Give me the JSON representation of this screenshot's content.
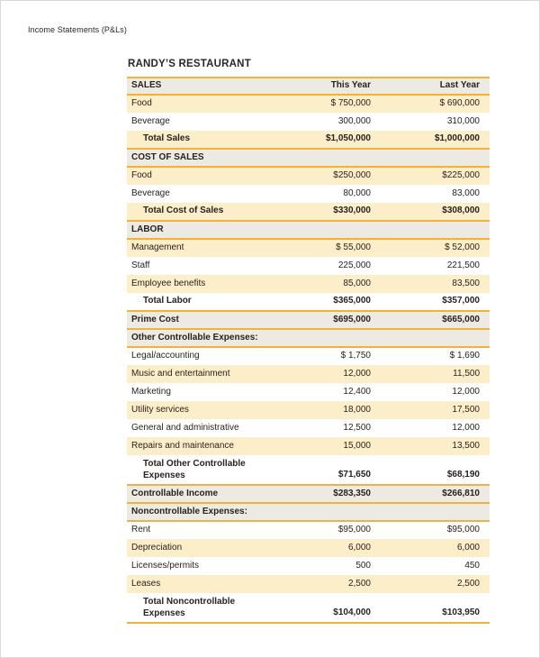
{
  "page": {
    "eyebrow": "Income Statements (P&Ls)",
    "title": "RANDY’S RESTAURANT"
  },
  "colors": {
    "accent_gold": "#efb23d",
    "row_peach": "#fdeeca",
    "band_gray": "#edeae3",
    "text_ink": "#272220"
  },
  "table": {
    "header": {
      "label": "SALES",
      "col_this_year": "This Year",
      "col_last_year": "Last Year"
    },
    "rows": [
      {
        "label": "Food",
        "this_year": "$ 750,000",
        "last_year": "$ 690,000",
        "bg": "peach",
        "bold": false,
        "indent": false
      },
      {
        "label": "Beverage",
        "this_year": "300,000",
        "last_year": "310,000",
        "bg": "white",
        "bold": false,
        "indent": false
      },
      {
        "label": "Total Sales",
        "this_year": "$1,050,000",
        "last_year": "$1,000,000",
        "bg": "peach",
        "bold": true,
        "indent": true
      },
      {
        "label": "COST OF SALES",
        "this_year": "",
        "last_year": "",
        "bg": "band",
        "bold": true,
        "indent": false
      },
      {
        "label": "Food",
        "this_year": "$250,000",
        "last_year": "$225,000",
        "bg": "peach",
        "bold": false,
        "indent": false
      },
      {
        "label": "Beverage",
        "this_year": "80,000",
        "last_year": "83,000",
        "bg": "white",
        "bold": false,
        "indent": false
      },
      {
        "label": "Total Cost of Sales",
        "this_year": "$330,000",
        "last_year": "$308,000",
        "bg": "peach",
        "bold": true,
        "indent": true
      },
      {
        "label": "LABOR",
        "this_year": "",
        "last_year": "",
        "bg": "band",
        "bold": true,
        "indent": false
      },
      {
        "label": "Management",
        "this_year": "$ 55,000",
        "last_year": "$ 52,000",
        "bg": "peach",
        "bold": false,
        "indent": false
      },
      {
        "label": "Staff",
        "this_year": "225,000",
        "last_year": "221,500",
        "bg": "white",
        "bold": false,
        "indent": false
      },
      {
        "label": "Employee benefits",
        "this_year": "85,000",
        "last_year": "83,500",
        "bg": "peach",
        "bold": false,
        "indent": false
      },
      {
        "label": "Total Labor",
        "this_year": "$365,000",
        "last_year": "$357,000",
        "bg": "white",
        "bold": true,
        "indent": true
      },
      {
        "label": "Prime Cost",
        "this_year": "$695,000",
        "last_year": "$665,000",
        "bg": "band",
        "bold": true,
        "indent": false
      },
      {
        "label": "Other Controllable Expenses:",
        "this_year": "",
        "last_year": "",
        "bg": "band",
        "bold": true,
        "indent": false
      },
      {
        "label": "Legal/accounting",
        "this_year": "$ 1,750",
        "last_year": "$ 1,690",
        "bg": "white",
        "bold": false,
        "indent": false
      },
      {
        "label": "Music and entertainment",
        "this_year": "12,000",
        "last_year": "11,500",
        "bg": "peach",
        "bold": false,
        "indent": false
      },
      {
        "label": "Marketing",
        "this_year": "12,400",
        "last_year": "12,000",
        "bg": "white",
        "bold": false,
        "indent": false
      },
      {
        "label": "Utility services",
        "this_year": "18,000",
        "last_year": "17,500",
        "bg": "peach",
        "bold": false,
        "indent": false
      },
      {
        "label": "General and administrative",
        "this_year": "12,500",
        "last_year": "12,000",
        "bg": "white",
        "bold": false,
        "indent": false
      },
      {
        "label": "Repairs and maintenance",
        "this_year": "15,000",
        "last_year": "13,500",
        "bg": "peach",
        "bold": false,
        "indent": false
      },
      {
        "label": "Total Other Controllable",
        "label2": "Expenses",
        "this_year": "$71,650",
        "last_year": "$68,190",
        "bg": "white",
        "bold": true,
        "indent": true
      },
      {
        "label": "Controllable Income",
        "this_year": "$283,350",
        "last_year": "$266,810",
        "bg": "band",
        "bold": true,
        "indent": false
      },
      {
        "label": "Noncontrollable Expenses:",
        "this_year": "",
        "last_year": "",
        "bg": "band",
        "bold": true,
        "indent": false
      },
      {
        "label": "Rent",
        "this_year": "$95,000",
        "last_year": "$95,000",
        "bg": "white",
        "bold": false,
        "indent": false
      },
      {
        "label": "Depreciation",
        "this_year": "6,000",
        "last_year": "6,000",
        "bg": "peach",
        "bold": false,
        "indent": false
      },
      {
        "label": "Licenses/permits",
        "this_year": "500",
        "last_year": "450",
        "bg": "white",
        "bold": false,
        "indent": false
      },
      {
        "label": "Leases",
        "this_year": "2,500",
        "last_year": "2,500",
        "bg": "peach",
        "bold": false,
        "indent": false
      },
      {
        "label": "Total Noncontrollable",
        "label2": "Expenses",
        "this_year": "$104,000",
        "last_year": "$103,950",
        "bg": "white",
        "bold": true,
        "indent": true
      }
    ]
  }
}
